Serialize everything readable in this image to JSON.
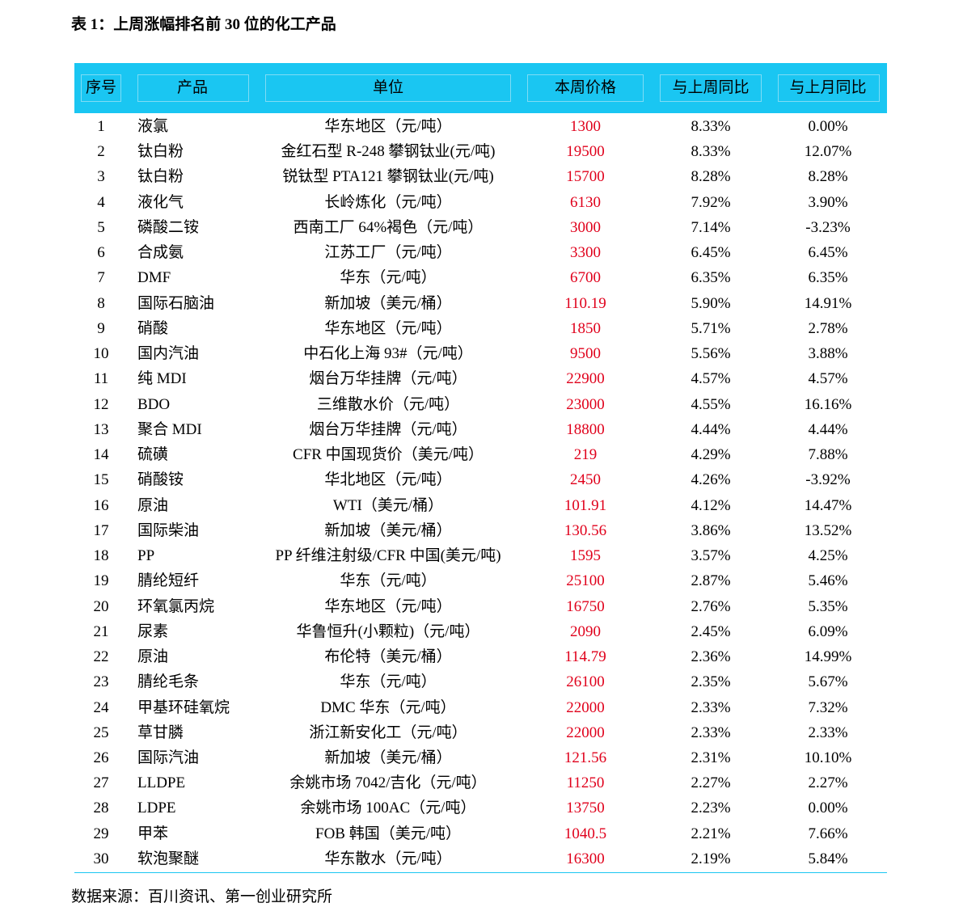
{
  "title": "表 1：上周涨幅排名前 30 位的化工产品",
  "table": {
    "columns": [
      "序号",
      "产品",
      "单位",
      "本周价格",
      "与上周同比",
      "与上月同比"
    ],
    "rows": [
      [
        "1",
        "液氯",
        "华东地区（元/吨）",
        "1300",
        "8.33%",
        "0.00%"
      ],
      [
        "2",
        "钛白粉",
        "金红石型 R-248 攀钢钛业(元/吨)",
        "19500",
        "8.33%",
        "12.07%"
      ],
      [
        "3",
        "钛白粉",
        "锐钛型 PTA121 攀钢钛业(元/吨)",
        "15700",
        "8.28%",
        "8.28%"
      ],
      [
        "4",
        "液化气",
        "长岭炼化（元/吨）",
        "6130",
        "7.92%",
        "3.90%"
      ],
      [
        "5",
        "磷酸二铵",
        "西南工厂 64%褐色（元/吨）",
        "3000",
        "7.14%",
        "-3.23%"
      ],
      [
        "6",
        "合成氨",
        "江苏工厂（元/吨）",
        "3300",
        "6.45%",
        "6.45%"
      ],
      [
        "7",
        "DMF",
        "华东（元/吨）",
        "6700",
        "6.35%",
        "6.35%"
      ],
      [
        "8",
        "国际石脑油",
        "新加坡（美元/桶）",
        "110.19",
        "5.90%",
        "14.91%"
      ],
      [
        "9",
        "硝酸",
        "华东地区（元/吨）",
        "1850",
        "5.71%",
        "2.78%"
      ],
      [
        "10",
        "国内汽油",
        "中石化上海 93#（元/吨）",
        "9500",
        "5.56%",
        "3.88%"
      ],
      [
        "11",
        "纯 MDI",
        "烟台万华挂牌（元/吨）",
        "22900",
        "4.57%",
        "4.57%"
      ],
      [
        "12",
        "BDO",
        "三维散水价（元/吨）",
        "23000",
        "4.55%",
        "16.16%"
      ],
      [
        "13",
        "聚合 MDI",
        "烟台万华挂牌（元/吨）",
        "18800",
        "4.44%",
        "4.44%"
      ],
      [
        "14",
        "硫磺",
        "CFR 中国现货价（美元/吨）",
        "219",
        "4.29%",
        "7.88%"
      ],
      [
        "15",
        "硝酸铵",
        "华北地区（元/吨）",
        "2450",
        "4.26%",
        "-3.92%"
      ],
      [
        "16",
        "原油",
        "WTI（美元/桶）",
        "101.91",
        "4.12%",
        "14.47%"
      ],
      [
        "17",
        "国际柴油",
        "新加坡（美元/桶）",
        "130.56",
        "3.86%",
        "13.52%"
      ],
      [
        "18",
        "PP",
        "PP 纤维注射级/CFR 中国(美元/吨)",
        "1595",
        "3.57%",
        "4.25%"
      ],
      [
        "19",
        "腈纶短纤",
        "华东（元/吨）",
        "25100",
        "2.87%",
        "5.46%"
      ],
      [
        "20",
        "环氧氯丙烷",
        "华东地区（元/吨）",
        "16750",
        "2.76%",
        "5.35%"
      ],
      [
        "21",
        "尿素",
        "华鲁恒升(小颗粒)（元/吨）",
        "2090",
        "2.45%",
        "6.09%"
      ],
      [
        "22",
        "原油",
        "布伦特（美元/桶）",
        "114.79",
        "2.36%",
        "14.99%"
      ],
      [
        "23",
        "腈纶毛条",
        "华东（元/吨）",
        "26100",
        "2.35%",
        "5.67%"
      ],
      [
        "24",
        "甲基环硅氧烷",
        "DMC 华东（元/吨）",
        "22000",
        "2.33%",
        "7.32%"
      ],
      [
        "25",
        "草甘膦",
        "浙江新安化工（元/吨）",
        "22000",
        "2.33%",
        "2.33%"
      ],
      [
        "26",
        "国际汽油",
        "新加坡（美元/桶）",
        "121.56",
        "2.31%",
        "10.10%"
      ],
      [
        "27",
        "LLDPE",
        "余姚市场 7042/吉化（元/吨）",
        "11250",
        "2.27%",
        "2.27%"
      ],
      [
        "28",
        "LDPE",
        "余姚市场 100AC（元/吨）",
        "13750",
        "2.23%",
        "0.00%"
      ],
      [
        "29",
        "甲苯",
        "FOB 韩国（美元/吨）",
        "1040.5",
        "2.21%",
        "7.66%"
      ],
      [
        "30",
        "软泡聚醚",
        "华东散水（元/吨）",
        "16300",
        "2.19%",
        "5.84%"
      ]
    ]
  },
  "source": "数据来源：百川资讯、第一创业研究所"
}
